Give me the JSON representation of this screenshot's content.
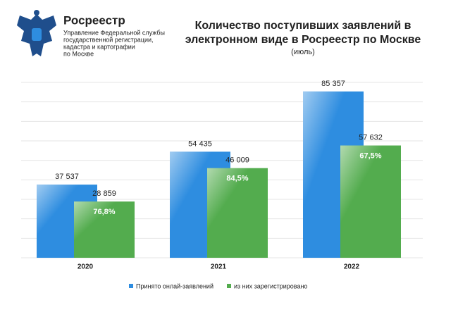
{
  "header": {
    "brand": "Росреестр",
    "lines": [
      "Управление Федеральной службы",
      "государственной регистрации,",
      "кадастра и картографии",
      "по Москве"
    ]
  },
  "chart_data": {
    "type": "bar",
    "title": [
      "Количество поступивших заявлений в",
      "электронном виде в Росреестр по Москве"
    ],
    "subtitle": "(июль)",
    "categories": [
      "2020",
      "2021",
      "2022"
    ],
    "series": [
      {
        "name": "Принято онлай-заявлений",
        "color": "#2e8de0",
        "values": [
          37537,
          54435,
          85357
        ],
        "value_labels": [
          "37 537",
          "54 435",
          "85 357"
        ]
      },
      {
        "name": "из них зарегистрировано",
        "color": "#53ac4e",
        "values": [
          28859,
          46009,
          57632
        ],
        "value_labels": [
          "28 859",
          "46 009",
          "57 632"
        ],
        "annotations": [
          "76,8%",
          "84,5%",
          "67,5%"
        ]
      }
    ],
    "ylim": [
      0,
      90000
    ],
    "yticks": [
      0,
      10000,
      20000,
      30000,
      40000,
      50000,
      60000,
      70000,
      80000,
      90000
    ],
    "grid": true,
    "legend": "bottom"
  }
}
